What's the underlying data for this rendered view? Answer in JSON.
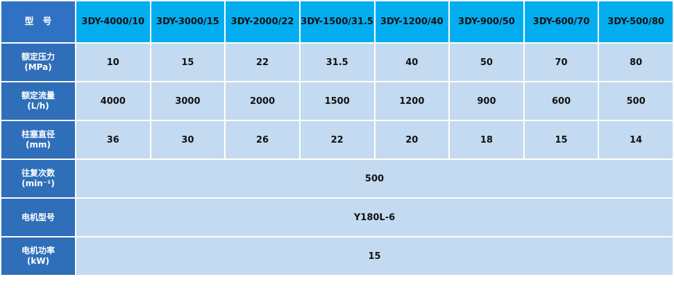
{
  "table": {
    "header": [
      "型　号",
      "3DY-4000/10",
      "3DY-3000/15",
      "3DY-2000/22",
      "3DY-1500/31.5",
      "3DY-1200/40",
      "3DY-900/50",
      "3DY-600/70",
      "3DY-500/80"
    ],
    "rows": [
      {
        "label": [
          "额定压力",
          "(MPa)"
        ],
        "values": [
          "10",
          "15",
          "22",
          "31.5",
          "40",
          "50",
          "70",
          "80"
        ]
      },
      {
        "label": [
          "额定流量",
          "(L/h)"
        ],
        "values": [
          "4000",
          "3000",
          "2000",
          "1500",
          "1200",
          "900",
          "600",
          "500"
        ]
      },
      {
        "label": [
          "柱塞直径",
          "(mm)"
        ],
        "values": [
          "36",
          "30",
          "26",
          "22",
          "20",
          "18",
          "15",
          "14"
        ]
      },
      {
        "label": [
          "往复次数",
          "(min⁻¹)"
        ],
        "values": [
          "500"
        ]
      },
      {
        "label": [
          "电机型号"
        ],
        "values": [
          "Y180L-6"
        ]
      },
      {
        "label": [
          "电机功率",
          "(kW)"
        ],
        "values": [
          "15"
        ]
      }
    ]
  }
}
